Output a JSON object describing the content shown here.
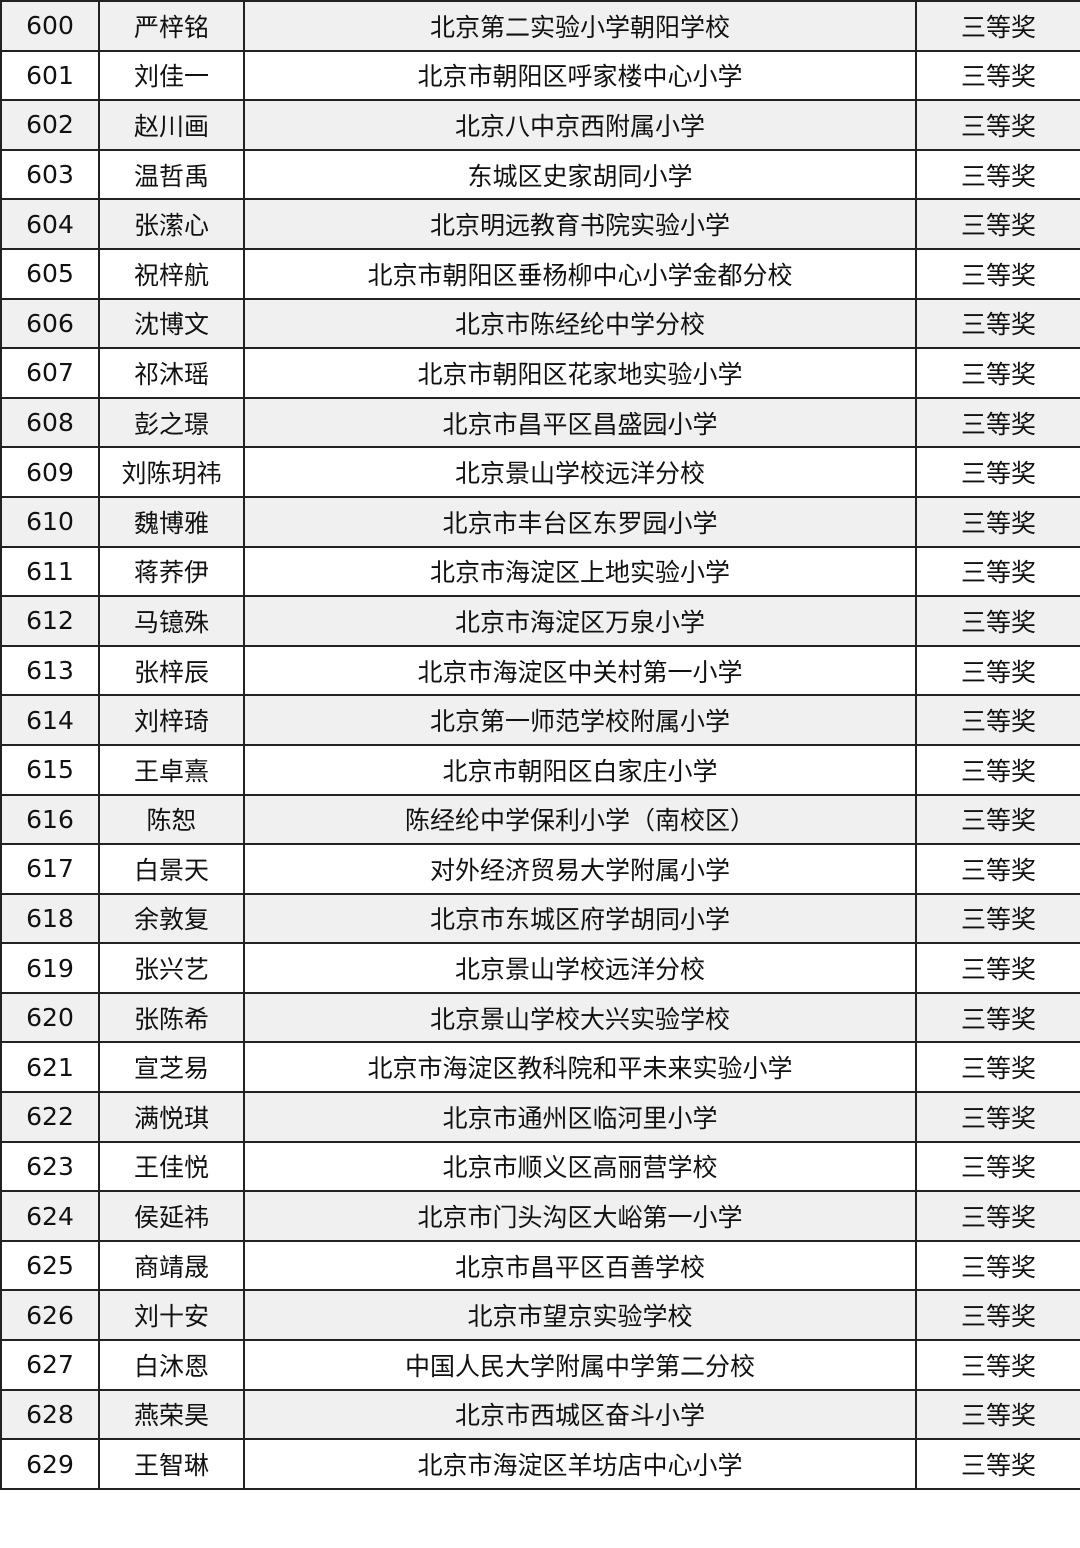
{
  "rows": [
    {
      "no": "600",
      "name": "严梓铭",
      "school": "北京第二实验小学朝阳学校",
      "award": "三等奖"
    },
    {
      "no": "601",
      "name": "刘佳一",
      "school": "北京市朝阳区呼家楼中心小学",
      "award": "三等奖"
    },
    {
      "no": "602",
      "name": "赵川画",
      "school": "北京八中京西附属小学",
      "award": "三等奖"
    },
    {
      "no": "603",
      "name": "温哲禹",
      "school": "东城区史家胡同小学",
      "award": "三等奖"
    },
    {
      "no": "604",
      "name": "张潆心",
      "school": "北京明远教育书院实验小学",
      "award": "三等奖"
    },
    {
      "no": "605",
      "name": "祝梓航",
      "school": "北京市朝阳区垂杨柳中心小学金都分校",
      "award": "三等奖"
    },
    {
      "no": "606",
      "name": "沈博文",
      "school": "北京市陈经纶中学分校",
      "award": "三等奖"
    },
    {
      "no": "607",
      "name": "祁沐瑶",
      "school": "北京市朝阳区花家地实验小学",
      "award": "三等奖"
    },
    {
      "no": "608",
      "name": "彭之璟",
      "school": "北京市昌平区昌盛园小学",
      "award": "三等奖"
    },
    {
      "no": "609",
      "name": "刘陈玥祎",
      "school": "北京景山学校远洋分校",
      "award": "三等奖"
    },
    {
      "no": "610",
      "name": "魏博雅",
      "school": "北京市丰台区东罗园小学",
      "award": "三等奖"
    },
    {
      "no": "611",
      "name": "蒋荞伊",
      "school": "北京市海淀区上地实验小学",
      "award": "三等奖"
    },
    {
      "no": "612",
      "name": "马镱殊",
      "school": "北京市海淀区万泉小学",
      "award": "三等奖"
    },
    {
      "no": "613",
      "name": "张梓辰",
      "school": "北京市海淀区中关村第一小学",
      "award": "三等奖"
    },
    {
      "no": "614",
      "name": "刘梓琦",
      "school": "北京第一师范学校附属小学",
      "award": "三等奖"
    },
    {
      "no": "615",
      "name": "王卓熹",
      "school": "北京市朝阳区白家庄小学",
      "award": "三等奖"
    },
    {
      "no": "616",
      "name": "陈恕",
      "school": "陈经纶中学保利小学（南校区）",
      "award": "三等奖"
    },
    {
      "no": "617",
      "name": "白景天",
      "school": "对外经济贸易大学附属小学",
      "award": "三等奖"
    },
    {
      "no": "618",
      "name": "余敦复",
      "school": "北京市东城区府学胡同小学",
      "award": "三等奖"
    },
    {
      "no": "619",
      "name": "张兴艺",
      "school": "北京景山学校远洋分校",
      "award": "三等奖"
    },
    {
      "no": "620",
      "name": "张陈希",
      "school": "北京景山学校大兴实验学校",
      "award": "三等奖"
    },
    {
      "no": "621",
      "name": "宣芝易",
      "school": "北京市海淀区教科院和平未来实验小学",
      "award": "三等奖"
    },
    {
      "no": "622",
      "name": "满悦琪",
      "school": "北京市通州区临河里小学",
      "award": "三等奖"
    },
    {
      "no": "623",
      "name": "王佳悦",
      "school": "北京市顺义区高丽营学校",
      "award": "三等奖"
    },
    {
      "no": "624",
      "name": "侯延祎",
      "school": "北京市门头沟区大峪第一小学",
      "award": "三等奖"
    },
    {
      "no": "625",
      "name": "商靖晟",
      "school": "北京市昌平区百善学校",
      "award": "三等奖"
    },
    {
      "no": "626",
      "name": "刘十安",
      "school": "北京市望京实验学校",
      "award": "三等奖"
    },
    {
      "no": "627",
      "name": "白沐恩",
      "school": "中国人民大学附属中学第二分校",
      "award": "三等奖"
    },
    {
      "no": "628",
      "name": "燕荣昊",
      "school": "北京市西城区奋斗小学",
      "award": "三等奖"
    },
    {
      "no": "629",
      "name": "王智琳",
      "school": "北京市海淀区羊坊店中心小学",
      "award": "三等奖"
    }
  ]
}
